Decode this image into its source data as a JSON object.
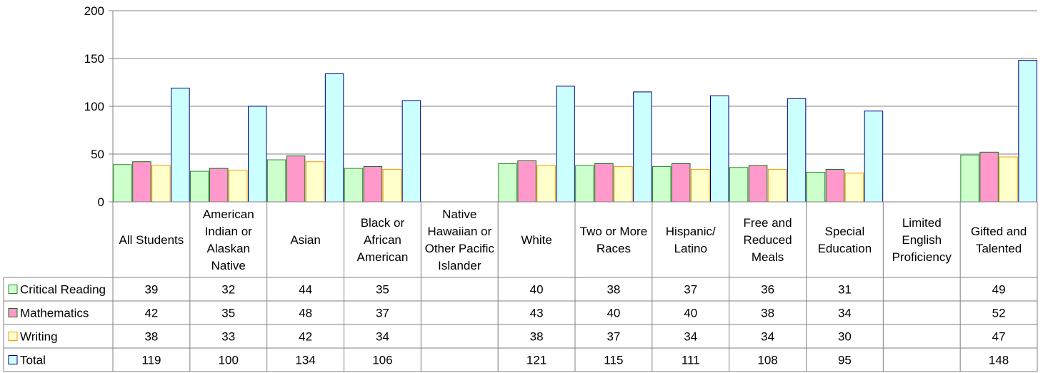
{
  "chart_data": {
    "type": "bar",
    "categories": [
      "All Students",
      "American Indian or Alaskan Native",
      "Asian",
      "Black or African American",
      "Native Hawaiian or Other Pacific Islander",
      "White",
      "Two or More Races",
      "Hispanic/ Latino",
      "Free and Reduced Meals",
      "Special Education",
      "Limited English Proficiency",
      "Gifted and Talented"
    ],
    "category_lines": [
      [
        "All Students"
      ],
      [
        "American",
        "Indian or",
        "Alaskan",
        "Native"
      ],
      [
        "Asian"
      ],
      [
        "Black or",
        "African",
        "American"
      ],
      [
        "Native",
        "Hawaiian or",
        "Other Pacific",
        "Islander"
      ],
      [
        "White"
      ],
      [
        "Two or More",
        "Races"
      ],
      [
        "Hispanic/",
        "Latino"
      ],
      [
        "Free and",
        "Reduced",
        "Meals"
      ],
      [
        "Special",
        "Education"
      ],
      [
        "Limited",
        "English",
        "Proficiency"
      ],
      [
        "Gifted and",
        "Talented"
      ]
    ],
    "series": [
      {
        "name": "Critical Reading",
        "color": "#ccffcc",
        "stroke": "#2e8b2e",
        "values": [
          39,
          32,
          44,
          35,
          null,
          40,
          38,
          37,
          36,
          31,
          null,
          49
        ]
      },
      {
        "name": "Mathematics",
        "color": "#ff99cc",
        "stroke": "#1a6b1a",
        "values": [
          42,
          35,
          48,
          37,
          null,
          43,
          40,
          40,
          38,
          34,
          null,
          52
        ]
      },
      {
        "name": "Writing",
        "color": "#ffffcc",
        "stroke": "#ff9900",
        "values": [
          38,
          33,
          42,
          34,
          null,
          38,
          37,
          34,
          34,
          30,
          null,
          47
        ]
      },
      {
        "name": "Total",
        "color": "#ccffff",
        "stroke": "#000080",
        "values": [
          119,
          100,
          134,
          106,
          null,
          121,
          115,
          111,
          108,
          95,
          null,
          148
        ]
      }
    ],
    "ylim": [
      0,
      200
    ],
    "yticks": [
      0,
      50,
      100,
      150,
      200
    ],
    "grid": true,
    "legend": "data-table",
    "title": "",
    "xlabel": "",
    "ylabel": ""
  }
}
